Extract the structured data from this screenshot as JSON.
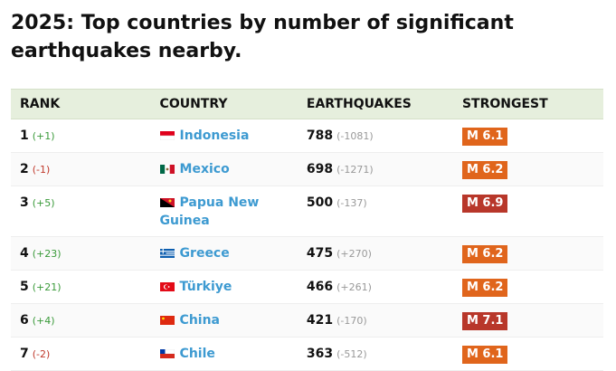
{
  "title": "2025: Top countries by number of significant earthquakes nearby.",
  "table": {
    "columns": [
      "RANK",
      "COUNTRY",
      "EARTHQUAKES",
      "STRONGEST"
    ],
    "rows": [
      {
        "rank": 1,
        "rank_change": "(+1)",
        "country": "Indonesia",
        "earthquakes": 788,
        "earthquakes_change": "(-1081)",
        "strongest": "M 6.1",
        "strongest_color": "#e0651c"
      },
      {
        "rank": 2,
        "rank_change": "(-1)",
        "country": "Mexico",
        "earthquakes": 698,
        "earthquakes_change": "(-1271)",
        "strongest": "M 6.2",
        "strongest_color": "#e0651c"
      },
      {
        "rank": 3,
        "rank_change": "(+5)",
        "country": "Papua New Guinea",
        "earthquakes": 500,
        "earthquakes_change": "(-137)",
        "strongest": "M 6.9",
        "strongest_color": "#b8372a"
      },
      {
        "rank": 4,
        "rank_change": "(+23)",
        "country": "Greece",
        "earthquakes": 475,
        "earthquakes_change": "(+270)",
        "strongest": "M 6.2",
        "strongest_color": "#e0651c"
      },
      {
        "rank": 5,
        "rank_change": "(+21)",
        "country": "Türkiye",
        "earthquakes": 466,
        "earthquakes_change": "(+261)",
        "strongest": "M 6.2",
        "strongest_color": "#e0651c"
      },
      {
        "rank": 6,
        "rank_change": "(+4)",
        "country": "China",
        "earthquakes": 421,
        "earthquakes_change": "(-170)",
        "strongest": "M 7.1",
        "strongest_color": "#b8372a"
      },
      {
        "rank": 7,
        "rank_change": "(-2)",
        "country": "Chile",
        "earthquakes": 363,
        "earthquakes_change": "(-512)",
        "strongest": "M 6.1",
        "strongest_color": "#e0651c"
      }
    ]
  }
}
